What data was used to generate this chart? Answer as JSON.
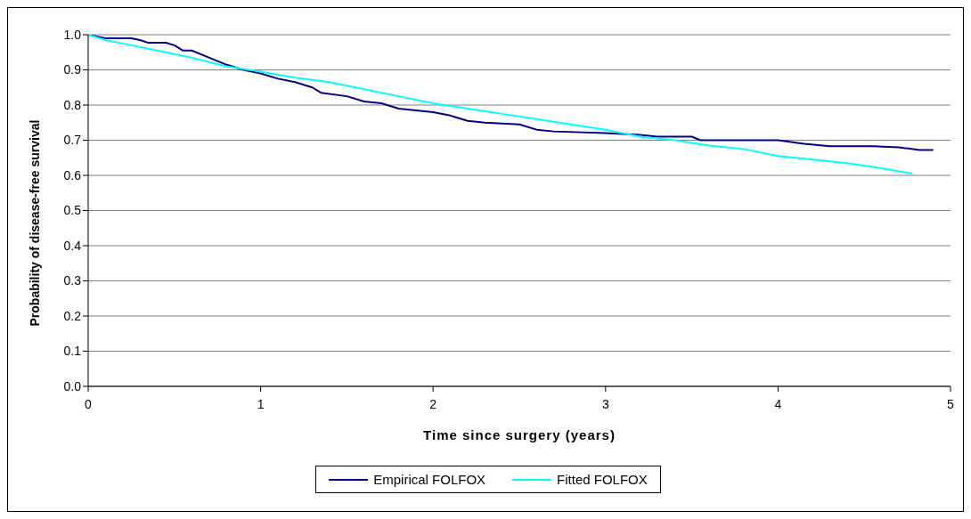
{
  "chart_data": {
    "type": "line",
    "xlabel": "Time since surgery (years)",
    "ylabel": "Probability of disease-free survival",
    "xlim": [
      0,
      5
    ],
    "xticks": [
      0,
      1,
      2,
      3,
      4,
      5
    ],
    "ylim": [
      0,
      1
    ],
    "yticks": [
      {
        "value": 0,
        "label": "0.0"
      },
      {
        "value": 0.1,
        "label": "0.1"
      },
      {
        "value": 0.2,
        "label": "0.2"
      },
      {
        "value": 0.3,
        "label": "0.3"
      },
      {
        "value": 0.4,
        "label": "0.4"
      },
      {
        "value": 0.5,
        "label": "0.5"
      },
      {
        "value": 0.6,
        "label": "0.6"
      },
      {
        "value": 0.7,
        "label": "0.7"
      },
      {
        "value": 0.8,
        "label": "0.8"
      },
      {
        "value": 0.9,
        "label": "0.9"
      },
      {
        "value": 1,
        "label": "1.0"
      }
    ],
    "grid": "y",
    "legend": "bottom",
    "marker": "none",
    "line_style": "solid",
    "series": [
      {
        "name": "Empirical FOLFOX",
        "color": "#000080",
        "x": [
          0,
          0.1,
          0.25,
          0.3,
          0.35,
          0.45,
          0.5,
          0.55,
          0.6,
          0.7,
          0.8,
          0.9,
          1.0,
          1.1,
          1.2,
          1.3,
          1.35,
          1.5,
          1.6,
          1.7,
          1.8,
          1.9,
          2.0,
          2.1,
          2.2,
          2.3,
          2.5,
          2.6,
          2.7,
          3.0,
          3.2,
          3.3,
          3.5,
          3.55,
          4.0,
          4.15,
          4.3,
          4.55,
          4.7,
          4.82,
          4.9
        ],
        "values": [
          1.0,
          0.99,
          0.99,
          0.985,
          0.977,
          0.977,
          0.97,
          0.955,
          0.955,
          0.935,
          0.915,
          0.9,
          0.89,
          0.875,
          0.865,
          0.85,
          0.835,
          0.825,
          0.81,
          0.805,
          0.79,
          0.785,
          0.78,
          0.77,
          0.755,
          0.75,
          0.745,
          0.73,
          0.725,
          0.72,
          0.715,
          0.71,
          0.71,
          0.7,
          0.7,
          0.69,
          0.683,
          0.683,
          0.68,
          0.672,
          0.672
        ]
      },
      {
        "name": "Fitted FOLFOX",
        "color": "#00ffff",
        "x": [
          0,
          0.1,
          0.2,
          0.4,
          0.6,
          0.8,
          1.0,
          1.2,
          1.4,
          1.6,
          1.8,
          2.0,
          2.2,
          2.4,
          2.6,
          2.8,
          3.0,
          3.2,
          3.4,
          3.6,
          3.8,
          4.0,
          4.2,
          4.4,
          4.6,
          4.78
        ],
        "values": [
          1.0,
          0.985,
          0.975,
          0.955,
          0.935,
          0.91,
          0.895,
          0.878,
          0.865,
          0.845,
          0.825,
          0.805,
          0.79,
          0.775,
          0.76,
          0.745,
          0.73,
          0.71,
          0.7,
          0.685,
          0.675,
          0.655,
          0.645,
          0.635,
          0.62,
          0.605
        ]
      }
    ]
  }
}
